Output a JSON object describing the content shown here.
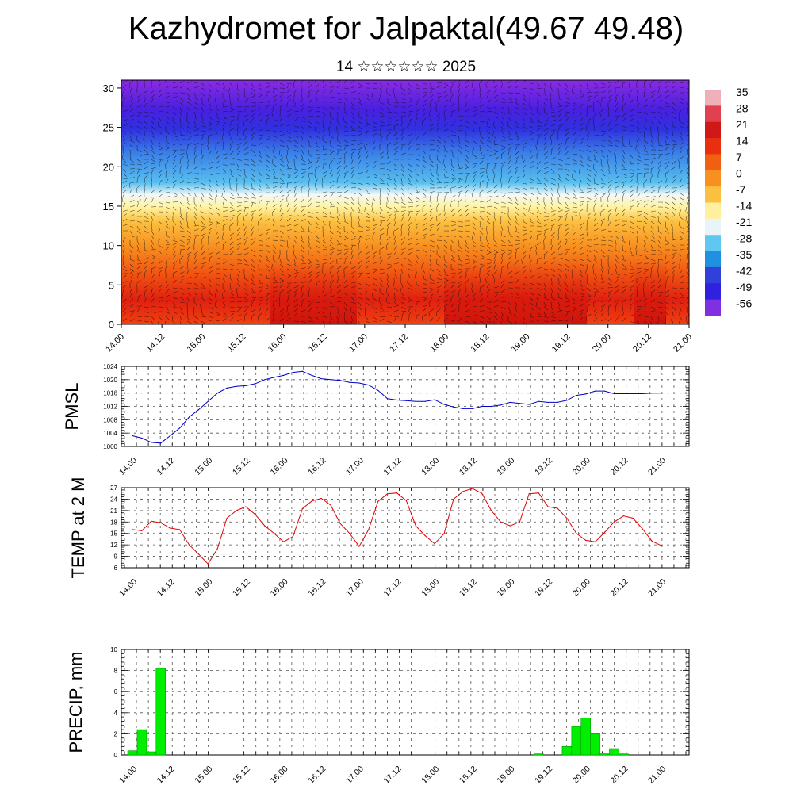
{
  "title": "Kazhydromet for Jalpaktal(49.67 49.48)",
  "subtitle": "14 ☆☆☆☆☆☆ 2025",
  "time_labels": [
    "14.00",
    "14.12",
    "15.00",
    "15.12",
    "16.00",
    "16.12",
    "17.00",
    "17.12",
    "18.00",
    "18.12",
    "19.00",
    "19.12",
    "20.00",
    "20.12",
    "21.00"
  ],
  "chart_data": [
    {
      "type": "heatmap",
      "name": "cross-section",
      "ylim": [
        0,
        31
      ],
      "y_ticks": [
        0,
        5,
        10,
        15,
        20,
        25,
        30
      ],
      "colorbar_labels": [
        "35",
        "28",
        "21",
        "14",
        "7",
        "0",
        "-7",
        "-14",
        "-21",
        "-28",
        "-35",
        "-42",
        "-49",
        "-56"
      ],
      "colorbar_colors": [
        "#f0b0b8",
        "#e04050",
        "#d01818",
        "#e83010",
        "#f06010",
        "#f89020",
        "#fcc040",
        "#fff0a0",
        "#e8f4f8",
        "#60c8f0",
        "#2090e0",
        "#3040d8",
        "#3020e0",
        "#8030e0"
      ],
      "temperature_profile_by_height": [
        {
          "height": 0,
          "temp": 25
        },
        {
          "height": 5,
          "temp": 20
        },
        {
          "height": 10,
          "temp": 8
        },
        {
          "height": 15,
          "temp": -10
        },
        {
          "height": 18,
          "temp": -28
        },
        {
          "height": 22,
          "temp": -45
        },
        {
          "height": 25,
          "temp": -56
        },
        {
          "height": 31,
          "temp": -56
        }
      ]
    },
    {
      "type": "line",
      "name": "PMSL",
      "ylabel": "PMSL",
      "ylim": [
        1000,
        1024
      ],
      "y_ticks": [
        1000,
        1004,
        1008,
        1012,
        1016,
        1020,
        1024
      ],
      "color": "#0000cc",
      "values": [
        1003.2,
        1002.5,
        1001.2,
        1001.0,
        1003.2,
        1005.5,
        1008.8,
        1011.0,
        1013.5,
        1016.0,
        1017.5,
        1018.0,
        1018.2,
        1018.8,
        1020.0,
        1020.7,
        1021.3,
        1022.2,
        1022.5,
        1021.3,
        1020.3,
        1020.0,
        1019.8,
        1019.2,
        1019.0,
        1018.4,
        1016.8,
        1014.3,
        1013.9,
        1013.7,
        1013.5,
        1013.5,
        1014.0,
        1012.6,
        1011.8,
        1011.3,
        1011.3,
        1012.0,
        1012.0,
        1012.4,
        1013.2,
        1012.9,
        1012.6,
        1013.5,
        1013.2,
        1013.2,
        1013.8,
        1015.3,
        1015.7,
        1016.6,
        1016.6,
        1015.8,
        1015.8,
        1015.8,
        1015.8,
        1016.0,
        1016.0
      ]
    },
    {
      "type": "line",
      "name": "TEMP at 2 M",
      "ylabel": "TEMP at 2 M",
      "ylim": [
        6,
        27
      ],
      "y_ticks": [
        6,
        9,
        12,
        15,
        18,
        21,
        24,
        27
      ],
      "color": "#e00000",
      "values": [
        16.0,
        15.7,
        18.2,
        17.8,
        16.4,
        16.0,
        12.0,
        9.6,
        7.0,
        11.0,
        19.0,
        21.0,
        22.0,
        20.0,
        17.0,
        15.0,
        12.8,
        14.2,
        21.5,
        23.5,
        24.2,
        22.4,
        17.6,
        15.0,
        11.6,
        16.0,
        23.4,
        25.4,
        25.6,
        23.6,
        17.0,
        14.4,
        12.3,
        15.0,
        24.0,
        26.0,
        26.8,
        25.5,
        21.0,
        18.0,
        17.0,
        18.0,
        25.4,
        25.6,
        22.0,
        21.6,
        19.0,
        15.0,
        13.2,
        12.8,
        15.3,
        18.0,
        19.6,
        19.0,
        16.2,
        13.0,
        11.8
      ]
    },
    {
      "type": "bar",
      "name": "PRECIP, mm",
      "ylabel": "PRECIP, mm",
      "ylim": [
        0,
        10
      ],
      "y_ticks": [
        0,
        2,
        4,
        6,
        8,
        10
      ],
      "color": "#00ee00",
      "values": [
        0.4,
        2.4,
        0.3,
        8.2,
        0,
        0,
        0,
        0,
        0,
        0,
        0,
        0,
        0,
        0,
        0,
        0,
        0,
        0,
        0,
        0,
        0,
        0,
        0,
        0,
        0,
        0,
        0,
        0,
        0,
        0,
        0,
        0,
        0,
        0,
        0,
        0,
        0,
        0,
        0,
        0,
        0,
        0,
        0,
        0.1,
        0,
        0,
        0.8,
        2.7,
        3.5,
        2.0,
        0.2,
        0.6,
        0.1,
        0,
        0,
        0,
        0
      ]
    }
  ]
}
